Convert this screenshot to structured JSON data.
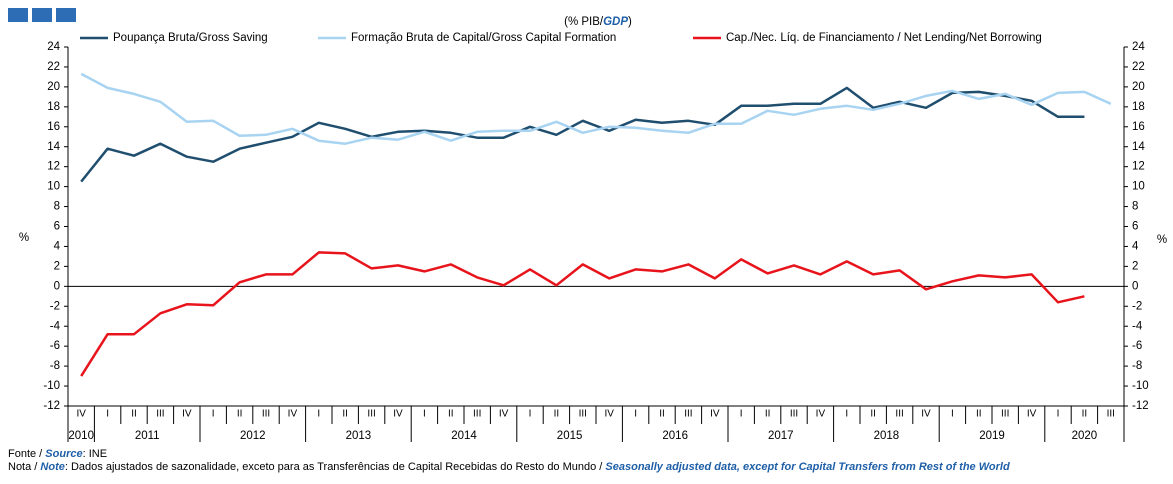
{
  "chart_data": {
    "type": "line",
    "subtitle_parts": [
      "(% PIB/",
      "GDP",
      ")"
    ],
    "ylabel": "%",
    "y2label": "%",
    "categories": [
      "IV",
      "I",
      "II",
      "III",
      "IV",
      "I",
      "II",
      "III",
      "IV",
      "I",
      "II",
      "III",
      "IV",
      "I",
      "II",
      "III",
      "IV",
      "I",
      "II",
      "III",
      "IV",
      "I",
      "II",
      "III",
      "IV",
      "I",
      "II",
      "III",
      "IV",
      "I",
      "II",
      "III",
      "IV",
      "I",
      "II",
      "III",
      "IV",
      "I",
      "II",
      "III"
    ],
    "year_groups": [
      {
        "label": "2010",
        "quarters": 1
      },
      {
        "label": "2011",
        "quarters": 4
      },
      {
        "label": "2012",
        "quarters": 4
      },
      {
        "label": "2013",
        "quarters": 4
      },
      {
        "label": "2014",
        "quarters": 4
      },
      {
        "label": "2015",
        "quarters": 4
      },
      {
        "label": "2016",
        "quarters": 4
      },
      {
        "label": "2017",
        "quarters": 4
      },
      {
        "label": "2018",
        "quarters": 4
      },
      {
        "label": "2019",
        "quarters": 4
      },
      {
        "label": "2020",
        "quarters": 3
      }
    ],
    "series": [
      {
        "name": "Poupança Bruta/Gross Saving",
        "color": "#1f4e6e",
        "values": [
          10.5,
          13.8,
          13.1,
          14.3,
          13.0,
          12.5,
          13.8,
          14.4,
          15.0,
          16.4,
          15.8,
          15.0,
          15.5,
          15.6,
          15.4,
          14.9,
          14.9,
          16.0,
          15.2,
          16.6,
          15.6,
          16.7,
          16.4,
          16.6,
          16.2,
          18.1,
          18.1,
          18.3,
          18.3,
          19.9,
          17.9,
          18.5,
          17.9,
          19.4,
          19.5,
          19.1,
          18.6,
          17.0,
          17.0,
          null
        ]
      },
      {
        "name": "Formação Bruta de Capital/Gross Capital Formation",
        "color": "#a8d4f2",
        "values": [
          21.3,
          19.9,
          19.3,
          18.5,
          16.5,
          16.6,
          15.1,
          15.2,
          15.8,
          14.6,
          14.3,
          14.9,
          14.7,
          15.5,
          14.6,
          15.5,
          15.6,
          15.6,
          16.5,
          15.4,
          16.0,
          15.9,
          15.6,
          15.4,
          16.3,
          16.3,
          17.6,
          17.2,
          17.8,
          18.1,
          17.7,
          18.3,
          19.1,
          19.6,
          18.8,
          19.3,
          18.2,
          19.4,
          19.5,
          18.3
        ]
      },
      {
        "name": "Cap./Nec. Líq. de Financiamento / Net Lending/Net Borrowing",
        "color": "#e8141c",
        "values": [
          -9.0,
          -4.8,
          -4.8,
          -2.7,
          -1.8,
          -1.9,
          0.4,
          1.2,
          1.2,
          3.4,
          3.3,
          1.8,
          2.1,
          1.5,
          2.2,
          0.9,
          0.1,
          1.7,
          0.1,
          2.2,
          0.8,
          1.7,
          1.5,
          2.2,
          0.8,
          2.7,
          1.3,
          2.1,
          1.2,
          2.5,
          1.2,
          1.6,
          -0.3,
          0.5,
          1.1,
          0.9,
          1.2,
          -1.6,
          -1.0,
          null
        ]
      }
    ],
    "ylim": [
      -12,
      24
    ],
    "yticks": [
      -12,
      -10,
      -8,
      -6,
      -4,
      -2,
      0,
      2,
      4,
      6,
      8,
      10,
      12,
      14,
      16,
      18,
      20,
      22,
      24
    ]
  },
  "footer": {
    "source_parts": [
      "Fonte / ",
      "Source",
      ":  INE"
    ],
    "note_parts": [
      "Nota / ",
      "Note",
      ": Dados ajustados de sazonalidade, exceto para as Transferências de Capital Recebidas do Resto do Mundo / ",
      "Seasonally adjusted data, except for Capital Transfers from Rest of the World"
    ]
  }
}
